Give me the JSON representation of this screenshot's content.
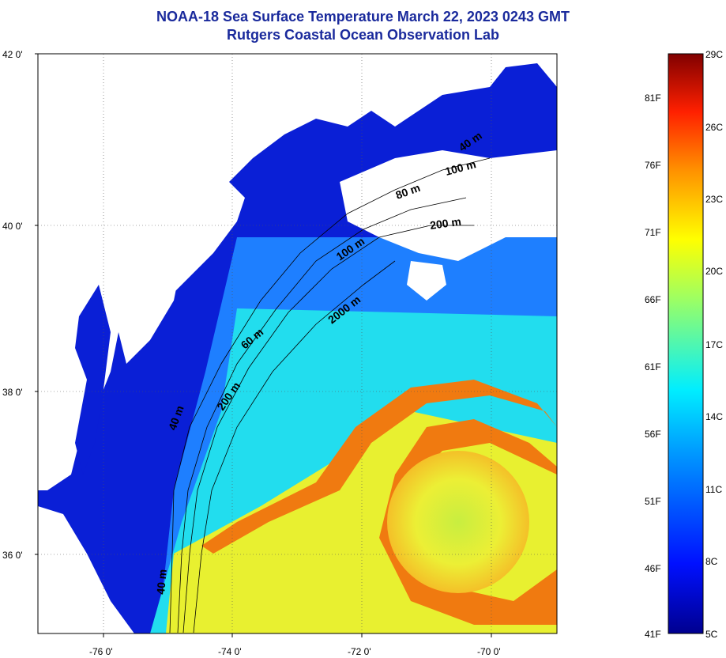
{
  "title": {
    "line1": "NOAA-18 Sea Surface Temperature March 22, 2023 0243 GMT",
    "line2": "Rutgers Coastal Ocean Observation Lab"
  },
  "map": {
    "lat_ticks": [
      "42 0'",
      "40 0'",
      "38 0'",
      "36 0'"
    ],
    "lon_ticks": [
      "-76 0'",
      "-74 0'",
      "-72 0'",
      "-70 0'"
    ],
    "isobaths": [
      {
        "label": "40 m"
      },
      {
        "label": "100 m"
      },
      {
        "label": "80 m"
      },
      {
        "label": "200 m"
      },
      {
        "label": "100 m"
      },
      {
        "label": "2000 m"
      },
      {
        "label": "60 m"
      },
      {
        "label": "200 m"
      },
      {
        "label": "40 m"
      },
      {
        "label": "40 m"
      }
    ],
    "colors": {
      "land": "#ffffff",
      "cold": "#0a1fd6",
      "cool": "#1e7fff",
      "mid": "#22ddee",
      "warm": "#e8f030",
      "hot": "#f07a10"
    }
  },
  "colorbar": {
    "fahrenheit": [
      "81F",
      "76F",
      "71F",
      "66F",
      "61F",
      "56F",
      "51F",
      "46F",
      "41F"
    ],
    "celsius": [
      "29C",
      "26C",
      "23C",
      "20C",
      "17C",
      "14C",
      "11C",
      "8C",
      "5C"
    ]
  }
}
